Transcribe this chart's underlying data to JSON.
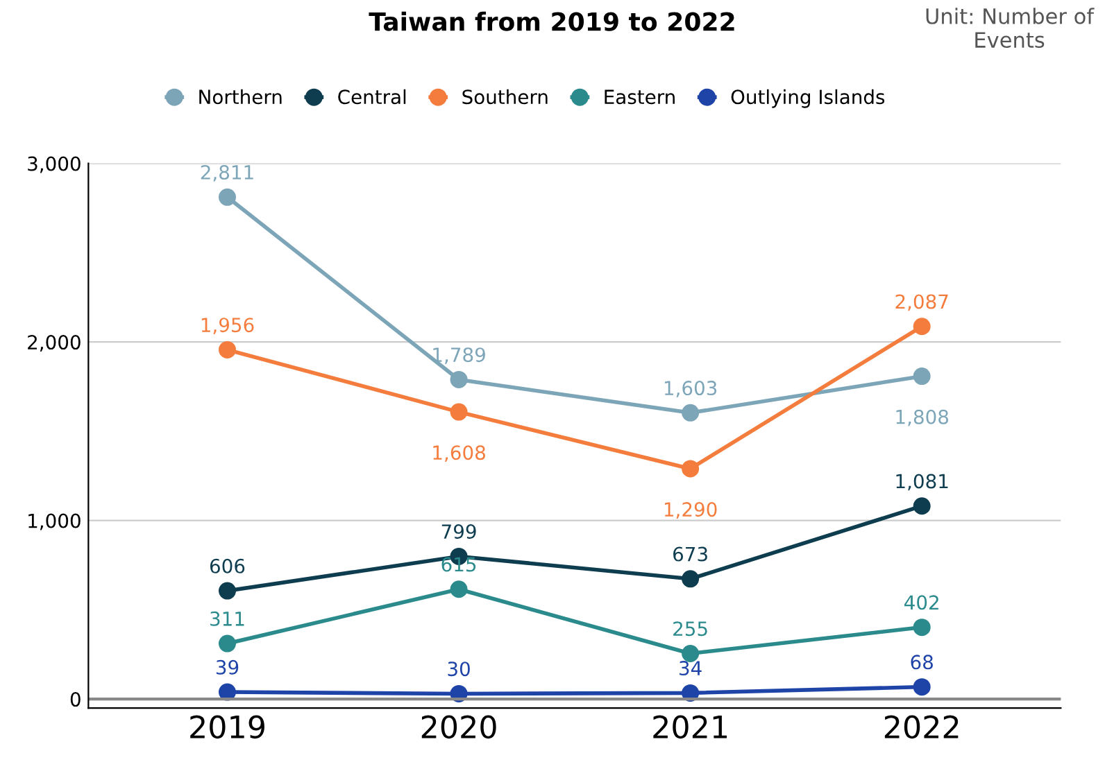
{
  "chart_data": {
    "type": "line",
    "title": "Taiwan from 2019 to 2022",
    "annotations": [
      "Unit: Number of\nEvents"
    ],
    "categories": [
      "2019",
      "2020",
      "2021",
      "2022"
    ],
    "series": [
      {
        "name": "Northern",
        "color": "#7da5b8",
        "values": [
          2811,
          1789,
          1603,
          1808
        ],
        "value_labels": [
          "2,811",
          "1,789",
          "1,603",
          "1,808"
        ]
      },
      {
        "name": "Central",
        "color": "#0f3d50",
        "values": [
          606,
          799,
          673,
          1081
        ],
        "value_labels": [
          "606",
          "799",
          "673",
          "1,081"
        ]
      },
      {
        "name": "Southern",
        "color": "#f47c3c",
        "values": [
          1956,
          1608,
          1290,
          2087
        ],
        "value_labels": [
          "1,956",
          "1,608",
          "1,290",
          "2,087"
        ]
      },
      {
        "name": "Eastern",
        "color": "#2b8a8c",
        "values": [
          311,
          615,
          255,
          402
        ],
        "value_labels": [
          "311",
          "615",
          "255",
          "402"
        ]
      },
      {
        "name": "Outlying Islands",
        "color": "#1f44a8",
        "values": [
          39,
          30,
          34,
          68
        ],
        "value_labels": [
          "39",
          "30",
          "34",
          "68"
        ]
      }
    ],
    "ylim": [
      -50,
      3000
    ],
    "yticks": [
      {
        "value": 0,
        "label": "0"
      },
      {
        "value": 1000,
        "label": "1,000"
      },
      {
        "value": 2000,
        "label": "2,000"
      },
      {
        "value": 3000,
        "label": "3,000"
      }
    ],
    "grid": "y",
    "legend": "top",
    "marker": "circle",
    "line_style": "solid"
  }
}
